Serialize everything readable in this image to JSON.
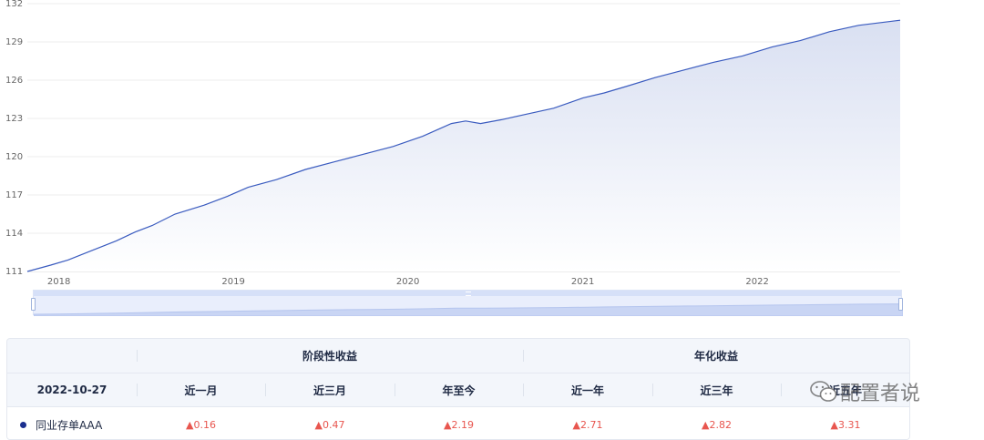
{
  "chart_data": {
    "type": "area",
    "y_ticks": [
      111,
      114,
      117,
      120,
      123,
      126,
      129,
      132
    ],
    "x_ticks": [
      "2018",
      "2019",
      "2020",
      "2021",
      "2022"
    ],
    "ylim": [
      111,
      132
    ],
    "grid": true,
    "x": [
      "2017-10-27",
      "2017-12-15",
      "2018-01-20",
      "2018-03-15",
      "2018-05-01",
      "2018-06-10",
      "2018-07-15",
      "2018-09-01",
      "2018-11-01",
      "2018-12-20",
      "2019-02-01",
      "2019-04-01",
      "2019-06-01",
      "2019-08-01",
      "2019-10-01",
      "2019-12-01",
      "2020-02-01",
      "2020-04-01",
      "2020-05-01",
      "2020-06-01",
      "2020-07-15",
      "2020-09-01",
      "2020-11-01",
      "2021-01-01",
      "2021-02-15",
      "2021-04-01",
      "2021-06-01",
      "2021-08-01",
      "2021-10-01",
      "2021-12-01",
      "2022-02-01",
      "2022-04-01",
      "2022-06-01",
      "2022-08-01",
      "2022-10-27"
    ],
    "values": [
      111.0,
      111.5,
      111.9,
      112.7,
      113.4,
      114.1,
      114.6,
      115.5,
      116.2,
      116.9,
      117.6,
      118.2,
      119.0,
      119.6,
      120.2,
      120.8,
      121.6,
      122.6,
      122.8,
      122.6,
      122.9,
      123.3,
      123.8,
      124.6,
      125.0,
      125.5,
      126.2,
      126.8,
      127.4,
      127.9,
      128.6,
      129.1,
      129.8,
      130.3,
      130.7
    ],
    "line_color": "#3a5bbf",
    "fill_color": "#dde3f3"
  },
  "table": {
    "group_labels": [
      "阶段性收益",
      "年化收益"
    ],
    "date": "2022-10-27",
    "headers": [
      "近一月",
      "近三月",
      "年至今",
      "近一年",
      "近三年",
      "近五年"
    ],
    "rows": [
      {
        "name": "同业存单AAA",
        "values": [
          "▲0.16",
          "▲0.47",
          "▲2.19",
          "▲2.71",
          "▲2.82",
          "▲3.31"
        ]
      }
    ]
  },
  "watermark": {
    "text": "配置者说"
  },
  "colors": {
    "up": "#e8564f",
    "series_dot": "#1b2f8f"
  }
}
